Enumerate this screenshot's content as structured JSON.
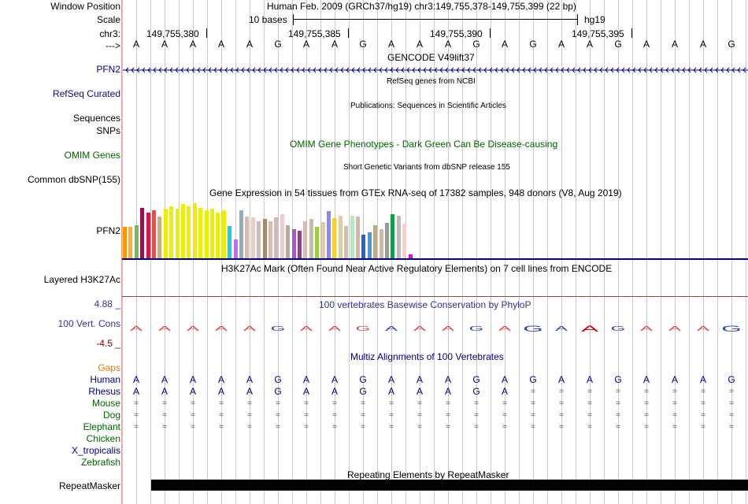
{
  "labels": {
    "window_position": "Window Position",
    "scale": "Scale",
    "chr": "chr3:",
    "arrow": "--->",
    "pfn2_gencode": "PFN2",
    "refseq": "RefSeq Curated",
    "sequences": "Sequences",
    "snps": "SNPs",
    "omim": "OMIM Genes",
    "common_dbsnp": "Common dbSNP(155)",
    "pfn2_gtex": "PFN2",
    "h3k27ac": "Layered H3K27Ac",
    "cons_max": "4.88 _",
    "cons_label": "100 Vert. Cons",
    "cons_min": "-4.5 _",
    "repeatmasker": "RepeatMasker"
  },
  "header": {
    "title": "Human Feb. 2009 (GRCh37/hg19)   chr3:149,755,378-149,755,399 (22 bp)",
    "scale_text": "10 bases",
    "assembly": "hg19"
  },
  "ruler": {
    "ticks": [
      "149,755,380",
      "149,755,385",
      "149,755,390",
      "149,755,395"
    ]
  },
  "sequence": [
    "A",
    "A",
    "A",
    "A",
    "A",
    "G",
    "A",
    "A",
    "G",
    "A",
    "A",
    "A",
    "G",
    "A",
    "G",
    "A",
    "A",
    "G",
    "A",
    "A",
    "A",
    "G"
  ],
  "tracks": {
    "gencode_title": "GENCODE V49lift37",
    "refseq_title": "RefSeq genes from NCBI",
    "publications_title": "Publications: Sequences in Scientific Articles",
    "omim_title": "OMIM Gene Phenotypes - Dark Green Can Be Disease-causing",
    "dbsnp_title": "Short Genetic Variants from dbSNP release 155",
    "gtex_title": "Gene Expression in 54 tissues from GTEx RNA-seq of 17382 samples, 948 donors (V8, Aug 2019)",
    "h3k27ac_title": "H3K27Ac Mark (Often Found Near Active Regulatory Elements) on 7 cell lines from ENCODE",
    "phylop_title": "100 vertebrates Basewise Conservation by PhyloP",
    "multiz_title": "Multiz Alignments of 100 Vertebrates",
    "repeat_title": "Repeating Elements by RepeatMasker"
  },
  "multiz": {
    "gaps_label": "Gaps",
    "species": [
      {
        "name": "Human",
        "color": "#000080",
        "row": [
          "A",
          "A",
          "A",
          "A",
          "A",
          "G",
          "A",
          "A",
          "G",
          "A",
          "A",
          "A",
          "G",
          "A",
          "G",
          "A",
          "A",
          "G",
          "A",
          "A",
          "A",
          "G"
        ]
      },
      {
        "name": "Rhesus",
        "color": "#000080",
        "row": [
          "A",
          "A",
          "A",
          "A",
          "A",
          "G",
          "A",
          "A",
          "G",
          "A",
          "A",
          "A",
          "G",
          "A",
          "=",
          "=",
          "=",
          "=",
          "=",
          "=",
          "=",
          "="
        ]
      },
      {
        "name": "Mouse",
        "color": "#006400",
        "row": [
          "=",
          "=",
          "=",
          "=",
          "=",
          "=",
          "=",
          "=",
          "=",
          "=",
          "=",
          "=",
          "=",
          "=",
          "=",
          "=",
          "=",
          "=",
          "=",
          "=",
          "=",
          "="
        ]
      },
      {
        "name": "Dog",
        "color": "#006400",
        "row": [
          "=",
          "=",
          "=",
          "=",
          "=",
          "=",
          "=",
          "=",
          "=",
          "=",
          "=",
          "=",
          "=",
          "=",
          "=",
          "=",
          "=",
          "=",
          "=",
          "=",
          "=",
          "="
        ]
      },
      {
        "name": "Elephant",
        "color": "#006400",
        "row": [
          "=",
          "=",
          "=",
          "=",
          "=",
          "=",
          "=",
          "=",
          "=",
          "=",
          "=",
          "=",
          "=",
          "=",
          "=",
          "=",
          "=",
          "=",
          "=",
          "=",
          "=",
          "="
        ]
      },
      {
        "name": "Chicken",
        "color": "#006400",
        "row": []
      },
      {
        "name": "X_tropicalis",
        "color": "#000080",
        "row": []
      },
      {
        "name": "Zebrafish",
        "color": "#006400",
        "row": []
      }
    ]
  },
  "gtex_bars": [
    {
      "c": "#ff9900",
      "h": 0.54
    },
    {
      "c": "#ffaa33",
      "h": 0.54
    },
    {
      "c": "#77bb55",
      "h": 0.57
    },
    {
      "c": "#991144",
      "h": 0.86
    },
    {
      "c": "#dd1144",
      "h": 0.79
    },
    {
      "c": "#ff4444",
      "h": 0.82
    },
    {
      "c": "#ccaa88",
      "h": 0.71
    },
    {
      "c": "#eeee00",
      "h": 0.85
    },
    {
      "c": "#eeee00",
      "h": 0.89
    },
    {
      "c": "#eeee00",
      "h": 0.85
    },
    {
      "c": "#eeee00",
      "h": 0.93
    },
    {
      "c": "#eeee00",
      "h": 0.89
    },
    {
      "c": "#eeee00",
      "h": 0.95
    },
    {
      "c": "#eeee00",
      "h": 0.86
    },
    {
      "c": "#eeee00",
      "h": 0.83
    },
    {
      "c": "#eeee00",
      "h": 0.85
    },
    {
      "c": "#eeee00",
      "h": 0.79
    },
    {
      "c": "#eeee00",
      "h": 0.83
    },
    {
      "c": "#22ccdd",
      "h": 0.55
    },
    {
      "c": "#cc66ff",
      "h": 0.33
    },
    {
      "c": "#99aabb",
      "h": 0.82
    },
    {
      "c": "#ddbbaa",
      "h": 0.71
    },
    {
      "c": "#eeccbb",
      "h": 0.7
    },
    {
      "c": "#ccbbbb",
      "h": 0.64
    },
    {
      "c": "#aa8866",
      "h": 0.68
    },
    {
      "c": "#ddbbaa",
      "h": 0.64
    },
    {
      "c": "#ccbbbb",
      "h": 0.7
    },
    {
      "c": "#eecccc",
      "h": 0.75
    },
    {
      "c": "#bbaa99",
      "h": 0.57
    },
    {
      "c": "#aa55cc",
      "h": 0.5
    },
    {
      "c": "#884488",
      "h": 0.47
    },
    {
      "c": "#ddbbaa",
      "h": 0.64
    },
    {
      "c": "#ccbbaa",
      "h": 0.68
    },
    {
      "c": "#99cc44",
      "h": 0.54
    },
    {
      "c": "#ddccaa",
      "h": 0.62
    },
    {
      "c": "#8888ff",
      "h": 0.81
    },
    {
      "c": "#ffcc33",
      "h": 0.69
    },
    {
      "c": "#ddccaa",
      "h": 0.73
    },
    {
      "c": "#ddbbaa",
      "h": 0.55
    },
    {
      "c": "#aaeebb",
      "h": 0.73
    },
    {
      "c": "#ccbbaa",
      "h": 0.71
    },
    {
      "c": "#2266cc",
      "h": 0.4
    },
    {
      "c": "#4499dd",
      "h": 0.45
    },
    {
      "c": "#bbaa88",
      "h": 0.57
    },
    {
      "c": "#ccbbaa",
      "h": 0.5
    },
    {
      "c": "#999999",
      "h": 0.61
    },
    {
      "c": "#119944",
      "h": 0.75
    },
    {
      "c": "#bbbbbb",
      "h": 0.73
    },
    {
      "c": "#ffcccc",
      "h": 0.59
    },
    {
      "c": "#ee00ee",
      "h": 0.07
    }
  ]
}
